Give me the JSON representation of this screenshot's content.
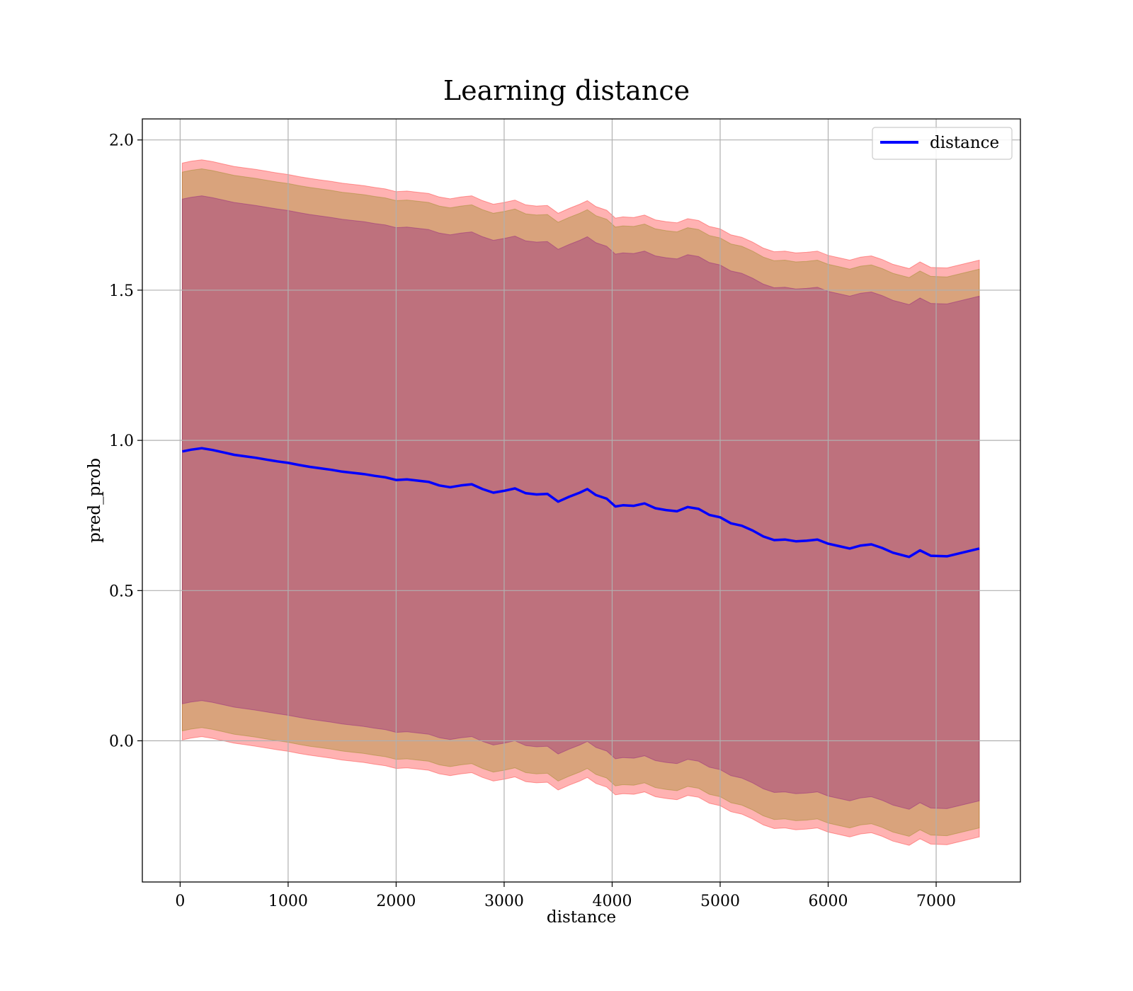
{
  "chart_data": {
    "type": "line",
    "title": "Learning distance",
    "xlabel": "distance",
    "ylabel": "pred_prob",
    "xlim": [
      -350,
      7780
    ],
    "ylim": [
      -0.47,
      2.07
    ],
    "xticks": [
      0,
      1000,
      2000,
      3000,
      4000,
      5000,
      6000,
      7000
    ],
    "yticks": [
      0.0,
      0.5,
      1.0,
      1.5,
      2.0
    ],
    "xtick_labels": [
      "0",
      "1000",
      "2000",
      "3000",
      "4000",
      "5000",
      "6000",
      "7000"
    ],
    "ytick_labels": [
      "0.0",
      "0.5",
      "1.0",
      "1.5",
      "2.0"
    ],
    "grid": true,
    "legend": {
      "position": "top-right",
      "entries": [
        "distance"
      ]
    },
    "colors": {
      "line": "#0000ff",
      "outer_band": "#ff0000",
      "middle_band": "#808000",
      "inner_band": "#800080"
    },
    "series": [
      {
        "name": "distance",
        "x": [
          20,
          100,
          200,
          300,
          400,
          500,
          600,
          700,
          800,
          900,
          1000,
          1100,
          1200,
          1300,
          1400,
          1500,
          1600,
          1700,
          1800,
          1900,
          2000,
          2100,
          2200,
          2300,
          2400,
          2500,
          2600,
          2700,
          2800,
          2900,
          3000,
          3100,
          3200,
          3300,
          3400,
          3500,
          3600,
          3700,
          3770,
          3850,
          3950,
          4030,
          4100,
          4200,
          4300,
          4400,
          4500,
          4600,
          4700,
          4800,
          4900,
          5000,
          5100,
          5200,
          5300,
          5400,
          5500,
          5600,
          5700,
          5800,
          5900,
          6000,
          6100,
          6200,
          6300,
          6400,
          6500,
          6600,
          6750,
          6850,
          6950,
          7100,
          7400
        ],
        "values": [
          0.963,
          0.969,
          0.974,
          0.968,
          0.96,
          0.952,
          0.947,
          0.942,
          0.936,
          0.93,
          0.925,
          0.918,
          0.912,
          0.907,
          0.902,
          0.896,
          0.892,
          0.888,
          0.882,
          0.877,
          0.868,
          0.87,
          0.866,
          0.862,
          0.85,
          0.844,
          0.85,
          0.854,
          0.838,
          0.826,
          0.832,
          0.84,
          0.824,
          0.82,
          0.822,
          0.796,
          0.812,
          0.826,
          0.838,
          0.818,
          0.806,
          0.78,
          0.784,
          0.782,
          0.79,
          0.774,
          0.768,
          0.764,
          0.778,
          0.772,
          0.752,
          0.744,
          0.724,
          0.716,
          0.7,
          0.68,
          0.668,
          0.67,
          0.664,
          0.666,
          0.67,
          0.656,
          0.648,
          0.64,
          0.65,
          0.654,
          0.642,
          0.626,
          0.612,
          0.634,
          0.616,
          0.614,
          0.64
        ]
      }
    ],
    "bands": [
      {
        "name": "outer",
        "halfwidth_start": 0.96,
        "halfwidth_end": 0.96
      },
      {
        "name": "middle",
        "halfwidth_start": 0.93,
        "halfwidth_end": 0.93
      },
      {
        "name": "inner",
        "halfwidth_start": 0.84,
        "halfwidth_end": 0.84
      }
    ]
  }
}
